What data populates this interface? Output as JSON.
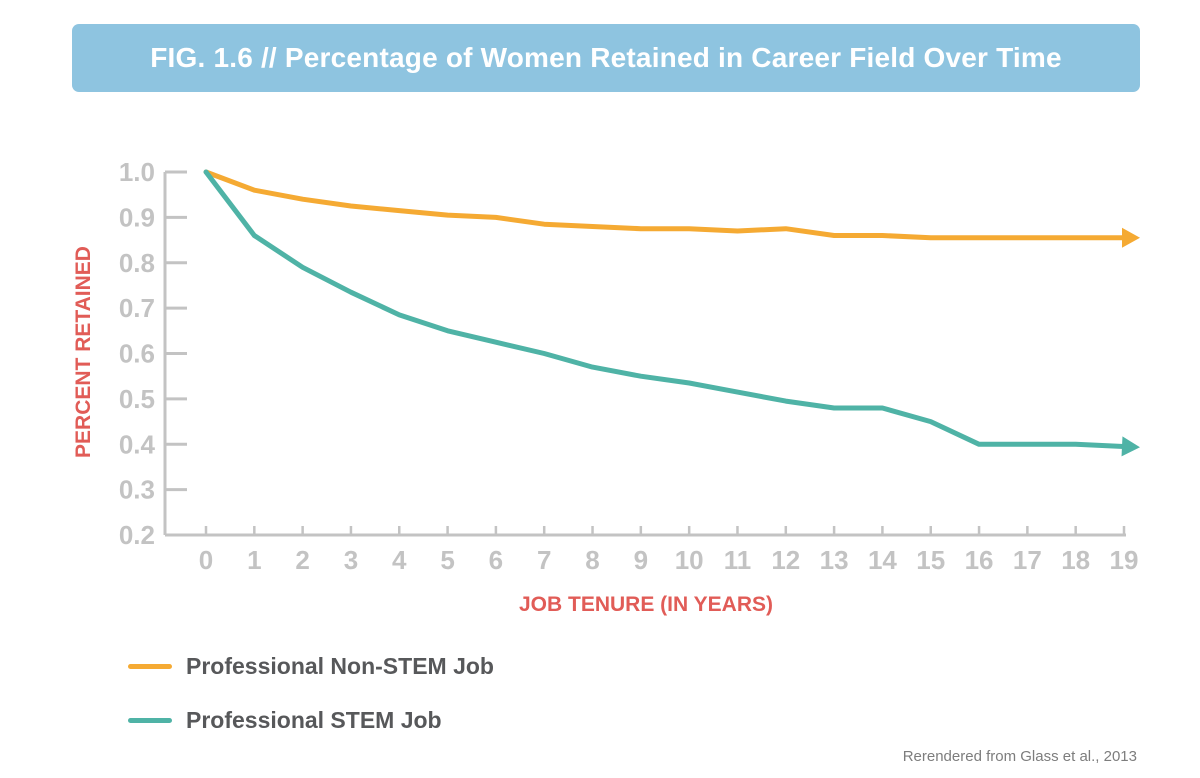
{
  "title": "FIG. 1.6  //  Percentage of Women Retained in Career Field Over Time",
  "source_note": "Rerendered from Glass et al., 2013",
  "colors": {
    "banner": "#8ec4e0",
    "non_stem": "#f5aa33",
    "stem": "#4fb3a6",
    "axis": "#c3c3c3",
    "axis_title": "#e15c57"
  },
  "chart_data": {
    "type": "line",
    "xlabel": "JOB TENURE (IN YEARS)",
    "ylabel": "PERCENT RETAINED",
    "x": [
      0,
      1,
      2,
      3,
      4,
      5,
      6,
      7,
      8,
      9,
      10,
      11,
      12,
      13,
      14,
      15,
      16,
      17,
      18,
      19
    ],
    "xlim": [
      0,
      19
    ],
    "ylim": [
      0.2,
      1.0
    ],
    "yticks": [
      "0.2",
      "0.3",
      "0.4",
      "0.5",
      "0.6",
      "0.7",
      "0.8",
      "0.9",
      "1.0"
    ],
    "xticks": [
      "0",
      "1",
      "2",
      "3",
      "4",
      "5",
      "6",
      "7",
      "8",
      "9",
      "10",
      "11",
      "12",
      "13",
      "14",
      "15",
      "16",
      "17",
      "18",
      "19"
    ],
    "grid": false,
    "legend_position": "bottom-left",
    "series": [
      {
        "name": "Professional Non-STEM Job",
        "color": "#f5aa33",
        "values": [
          1.0,
          0.96,
          0.94,
          0.925,
          0.915,
          0.905,
          0.9,
          0.885,
          0.88,
          0.875,
          0.875,
          0.87,
          0.875,
          0.86,
          0.86,
          0.855,
          0.855,
          0.855,
          0.855,
          0.855
        ]
      },
      {
        "name": "Professional STEM Job",
        "color": "#4fb3a6",
        "values": [
          1.0,
          0.86,
          0.79,
          0.735,
          0.685,
          0.65,
          0.625,
          0.6,
          0.57,
          0.55,
          0.535,
          0.515,
          0.495,
          0.48,
          0.48,
          0.45,
          0.4,
          0.4,
          0.4,
          0.395
        ]
      }
    ]
  }
}
